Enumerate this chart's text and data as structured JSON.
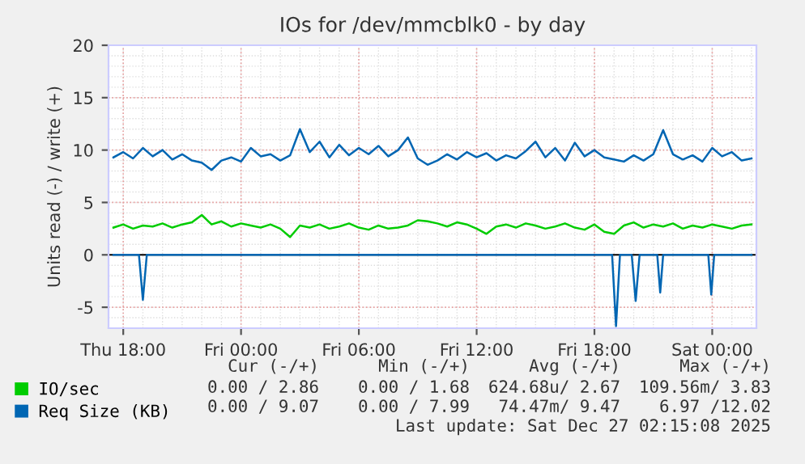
{
  "chart_data": {
    "type": "line",
    "title": "IOs for /dev/mmcblk0 - by day",
    "ylabel": "Units read (-) / write (+)",
    "x": [
      "2025-12-25T17:30",
      "2025-12-25T18:00",
      "2025-12-25T18:30",
      "2025-12-25T19:00",
      "2025-12-25T19:30",
      "2025-12-25T20:00",
      "2025-12-25T20:30",
      "2025-12-25T21:00",
      "2025-12-25T21:30",
      "2025-12-25T22:00",
      "2025-12-25T22:30",
      "2025-12-25T23:00",
      "2025-12-25T23:30",
      "2025-12-26T00:00",
      "2025-12-26T00:30",
      "2025-12-26T01:00",
      "2025-12-26T01:30",
      "2025-12-26T02:00",
      "2025-12-26T02:30",
      "2025-12-26T03:00",
      "2025-12-26T03:30",
      "2025-12-26T04:00",
      "2025-12-26T04:30",
      "2025-12-26T05:00",
      "2025-12-26T05:30",
      "2025-12-26T06:00",
      "2025-12-26T06:30",
      "2025-12-26T07:00",
      "2025-12-26T07:30",
      "2025-12-26T08:00",
      "2025-12-26T08:30",
      "2025-12-26T09:00",
      "2025-12-26T09:30",
      "2025-12-26T10:00",
      "2025-12-26T10:30",
      "2025-12-26T11:00",
      "2025-12-26T11:30",
      "2025-12-26T12:00",
      "2025-12-26T12:30",
      "2025-12-26T13:00",
      "2025-12-26T13:30",
      "2025-12-26T14:00",
      "2025-12-26T14:30",
      "2025-12-26T15:00",
      "2025-12-26T15:30",
      "2025-12-26T16:00",
      "2025-12-26T16:30",
      "2025-12-26T17:00",
      "2025-12-26T17:30",
      "2025-12-26T18:00",
      "2025-12-26T18:30",
      "2025-12-26T19:00",
      "2025-12-26T19:30",
      "2025-12-26T20:00",
      "2025-12-26T20:30",
      "2025-12-26T21:00",
      "2025-12-26T21:30",
      "2025-12-26T22:00",
      "2025-12-26T22:30",
      "2025-12-26T23:00",
      "2025-12-26T23:30",
      "2025-12-27T00:00",
      "2025-12-27T00:30",
      "2025-12-27T01:00",
      "2025-12-27T01:30",
      "2025-12-27T02:00"
    ],
    "series": [
      {
        "name": "IO/sec",
        "color": "#00cc00",
        "values": [
          2.6,
          2.9,
          2.5,
          2.8,
          2.7,
          3.0,
          2.6,
          2.9,
          3.1,
          3.8,
          2.9,
          3.2,
          2.7,
          3.0,
          2.8,
          2.6,
          2.9,
          2.5,
          1.7,
          2.8,
          2.6,
          2.9,
          2.5,
          2.7,
          3.0,
          2.6,
          2.4,
          2.8,
          2.5,
          2.6,
          2.8,
          3.3,
          3.2,
          3.0,
          2.7,
          3.1,
          2.9,
          2.5,
          2.0,
          2.7,
          2.9,
          2.6,
          3.0,
          2.8,
          2.5,
          2.7,
          3.0,
          2.6,
          2.4,
          2.9,
          2.2,
          2.0,
          2.8,
          3.1,
          2.6,
          2.9,
          2.7,
          3.0,
          2.5,
          2.8,
          2.6,
          2.9,
          2.7,
          2.5,
          2.8,
          2.9
        ]
      },
      {
        "name": "Req Size (KB)",
        "color": "#0066b3",
        "values": [
          9.3,
          9.8,
          9.2,
          10.2,
          9.4,
          10.0,
          9.1,
          9.6,
          9.0,
          8.8,
          8.1,
          9.0,
          9.3,
          8.9,
          10.2,
          9.4,
          9.6,
          9.0,
          9.5,
          12.0,
          9.8,
          10.8,
          9.3,
          10.5,
          9.5,
          10.2,
          9.6,
          10.4,
          9.4,
          10.0,
          11.2,
          9.2,
          8.6,
          9.0,
          9.6,
          9.1,
          9.8,
          9.3,
          9.7,
          9.0,
          9.5,
          9.2,
          9.9,
          10.8,
          9.3,
          10.2,
          9.0,
          10.7,
          9.4,
          10.0,
          9.3,
          9.1,
          8.9,
          9.5,
          9.0,
          9.6,
          11.9,
          9.6,
          9.1,
          9.5,
          8.9,
          10.2,
          9.4,
          9.8,
          9.0,
          9.2
        ]
      },
      {
        "color": "#0066b3",
        "x": [
          "2025-12-25T17:30",
          "2025-12-25T18:48",
          "2025-12-25T19:00",
          "2025-12-25T19:12",
          "2025-12-26T18:54",
          "2025-12-26T19:06",
          "2025-12-26T19:18",
          "2025-12-26T19:54",
          "2025-12-26T20:06",
          "2025-12-26T20:18",
          "2025-12-26T21:12",
          "2025-12-26T21:21",
          "2025-12-26T21:30",
          "2025-12-26T23:48",
          "2025-12-26T23:57",
          "2025-12-27T00:06",
          "2025-12-27T02:00"
        ],
        "values": [
          0,
          0,
          -4.3,
          0,
          0,
          -6.8,
          0,
          0,
          -4.4,
          0,
          0,
          -3.6,
          0,
          0,
          -3.8,
          0,
          0
        ]
      }
    ],
    "xlim": [
      "2025-12-25T17:15",
      "2025-12-27T02:15"
    ],
    "xticks": [
      {
        "value": "2025-12-25T18:00",
        "label": "Thu 18:00"
      },
      {
        "value": "2025-12-26T00:00",
        "label": "Fri 00:00"
      },
      {
        "value": "2025-12-26T06:00",
        "label": "Fri 06:00"
      },
      {
        "value": "2025-12-26T12:00",
        "label": "Fri 12:00"
      },
      {
        "value": "2025-12-26T18:00",
        "label": "Fri 18:00"
      },
      {
        "value": "2025-12-27T00:00",
        "label": "Sat 00:00"
      }
    ],
    "ylim": [
      -7,
      20
    ],
    "yticks": [
      -5,
      0,
      5,
      10,
      15,
      20
    ],
    "ref_lines": [
      {
        "axis": "y",
        "value": 0,
        "color": "#000000"
      }
    ],
    "grid": true,
    "legend": "bottom",
    "annotations": [
      "Cur (-/+)",
      "Min (-/+)",
      "Avg (-/+)",
      "Max (-/+)",
      "0.00 / 2.86",
      "0.00 / 1.68",
      "624.68u/ 2.67",
      "109.56m/ 3.83",
      "0.00 / 9.07",
      "0.00 / 7.99",
      "74.47m/ 9.47",
      "6.97 /12.02",
      "Last update: Sat Dec 27 02:15:08 2025"
    ]
  }
}
